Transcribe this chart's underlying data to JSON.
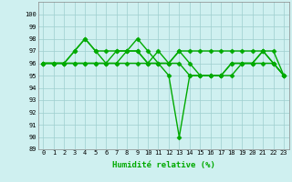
{
  "title": "",
  "xlabel": "Humidité relative (%)",
  "ylabel": "",
  "xlim": [
    -0.5,
    23.5
  ],
  "ylim": [
    89,
    101
  ],
  "yticks": [
    89,
    90,
    91,
    92,
    93,
    94,
    95,
    96,
    97,
    98,
    99,
    100
  ],
  "xticks": [
    0,
    1,
    2,
    3,
    4,
    5,
    6,
    7,
    8,
    9,
    10,
    11,
    12,
    13,
    14,
    15,
    16,
    17,
    18,
    19,
    20,
    21,
    22,
    23
  ],
  "bg_color": "#cff0f0",
  "grid_color": "#9ecece",
  "line_color": "#00aa00",
  "marker": "D",
  "markersize": 2.5,
  "linewidth": 1.0,
  "series": [
    [
      96,
      96,
      96,
      97,
      98,
      97,
      97,
      97,
      97,
      97,
      96,
      96,
      96,
      97,
      97,
      97,
      97,
      97,
      97,
      97,
      97,
      97,
      96,
      95
    ],
    [
      96,
      96,
      96,
      97,
      98,
      97,
      96,
      97,
      97,
      98,
      97,
      96,
      96,
      97,
      96,
      95,
      95,
      95,
      96,
      96,
      96,
      97,
      96,
      95
    ],
    [
      96,
      96,
      96,
      96,
      96,
      96,
      96,
      96,
      97,
      97,
      96,
      96,
      95,
      90,
      95,
      95,
      95,
      95,
      96,
      96,
      96,
      97,
      97,
      95
    ],
    [
      96,
      96,
      96,
      96,
      96,
      96,
      96,
      96,
      96,
      96,
      96,
      97,
      96,
      96,
      95,
      95,
      95,
      95,
      95,
      96,
      96,
      96,
      96,
      95
    ]
  ]
}
